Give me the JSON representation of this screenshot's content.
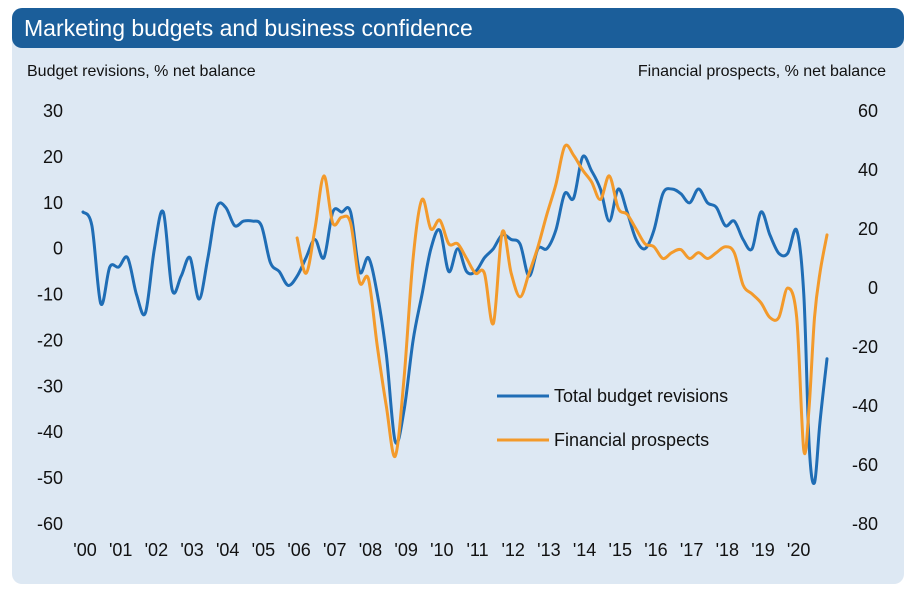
{
  "chart_data": {
    "type": "line",
    "title": "Marketing budgets and business confidence",
    "left_axis_label": "Budget revisions, % net balance",
    "right_axis_label": "Financial prospects, % net balance",
    "left_ylim": [
      -60,
      30
    ],
    "right_ylim": [
      -80,
      60
    ],
    "left_ticks": [
      "30",
      "20",
      "10",
      "0",
      "-10",
      "-20",
      "-30",
      "-40",
      "-50",
      "-60"
    ],
    "right_ticks": [
      "60",
      "40",
      "20",
      "0",
      "-20",
      "-40",
      "-60",
      "-80"
    ],
    "x_tick_labels": [
      "'00",
      "'01",
      "'02",
      "'03",
      "'04",
      "'05",
      "'06",
      "'07",
      "'08",
      "'09",
      "'10",
      "'11",
      "'12",
      "'13",
      "'14",
      "'15",
      "'16",
      "'17",
      "'18",
      "'19",
      "'20"
    ],
    "x_range": [
      2000,
      2020.85
    ],
    "series": [
      {
        "name": "Total budget revisions",
        "axis": "left",
        "color": "#1f6db5",
        "x": [
          2000.0,
          2000.25,
          2000.5,
          2000.75,
          2001.0,
          2001.25,
          2001.5,
          2001.75,
          2002.0,
          2002.25,
          2002.5,
          2002.75,
          2003.0,
          2003.25,
          2003.5,
          2003.75,
          2004.0,
          2004.25,
          2004.5,
          2004.75,
          2005.0,
          2005.25,
          2005.5,
          2005.75,
          2006.0,
          2006.25,
          2006.5,
          2006.75,
          2007.0,
          2007.25,
          2007.5,
          2007.75,
          2008.0,
          2008.25,
          2008.5,
          2008.75,
          2009.0,
          2009.25,
          2009.5,
          2009.75,
          2010.0,
          2010.25,
          2010.5,
          2010.75,
          2011.0,
          2011.25,
          2011.5,
          2011.75,
          2012.0,
          2012.25,
          2012.5,
          2012.75,
          2013.0,
          2013.25,
          2013.5,
          2013.75,
          2014.0,
          2014.25,
          2014.5,
          2014.75,
          2015.0,
          2015.25,
          2015.5,
          2015.75,
          2016.0,
          2016.25,
          2016.5,
          2016.75,
          2017.0,
          2017.25,
          2017.5,
          2017.75,
          2018.0,
          2018.25,
          2018.5,
          2018.75,
          2019.0,
          2019.25,
          2019.5,
          2019.75,
          2020.0,
          2020.2,
          2020.35,
          2020.5,
          2020.65,
          2020.85
        ],
        "values": [
          8,
          5,
          -12,
          -4,
          -4,
          -2,
          -10,
          -14,
          0,
          8,
          -9,
          -6,
          -2,
          -11,
          -2,
          9,
          9,
          5,
          6,
          6,
          5,
          -3,
          -5,
          -8,
          -6,
          -2,
          2,
          -2,
          8,
          8,
          8,
          -5,
          -2,
          -10,
          -23,
          -42,
          -35,
          -20,
          -10,
          0,
          4,
          -5,
          0,
          -5,
          -5,
          -2,
          0,
          3,
          2,
          1,
          -6,
          0,
          0,
          4,
          12,
          11,
          20,
          17,
          13,
          6,
          13,
          8,
          2,
          0,
          4,
          12,
          13,
          12,
          10,
          13,
          10,
          9,
          5,
          6,
          2,
          0,
          8,
          3,
          -1,
          -1,
          4,
          -10,
          -43,
          -51,
          -38,
          -24
        ]
      },
      {
        "name": "Financial prospects",
        "axis": "right",
        "color": "#f39a2b",
        "x": [
          2006.0,
          2006.25,
          2006.5,
          2006.75,
          2007.0,
          2007.25,
          2007.5,
          2007.75,
          2008.0,
          2008.25,
          2008.5,
          2008.75,
          2009.0,
          2009.25,
          2009.5,
          2009.75,
          2010.0,
          2010.25,
          2010.5,
          2010.75,
          2011.0,
          2011.25,
          2011.5,
          2011.75,
          2012.0,
          2012.25,
          2012.5,
          2012.75,
          2013.0,
          2013.25,
          2013.5,
          2013.75,
          2014.0,
          2014.25,
          2014.5,
          2014.75,
          2015.0,
          2015.25,
          2015.5,
          2015.75,
          2016.0,
          2016.25,
          2016.5,
          2016.75,
          2017.0,
          2017.25,
          2017.5,
          2017.75,
          2018.0,
          2018.25,
          2018.5,
          2018.75,
          2019.0,
          2019.25,
          2019.5,
          2019.75,
          2020.0,
          2020.2,
          2020.35,
          2020.5,
          2020.65,
          2020.85
        ],
        "values": [
          17,
          5,
          20,
          38,
          22,
          24,
          22,
          2,
          3,
          -20,
          -40,
          -57,
          -30,
          10,
          30,
          20,
          23,
          15,
          15,
          10,
          5,
          5,
          -12,
          19,
          5,
          -3,
          5,
          14,
          25,
          35,
          48,
          45,
          40,
          36,
          30,
          38,
          27,
          25,
          20,
          15,
          14,
          10,
          12,
          13,
          10,
          12,
          10,
          12,
          14,
          12,
          1,
          -2,
          -5,
          -10,
          -10,
          0,
          -10,
          -55,
          -40,
          -10,
          5,
          18
        ]
      }
    ]
  }
}
